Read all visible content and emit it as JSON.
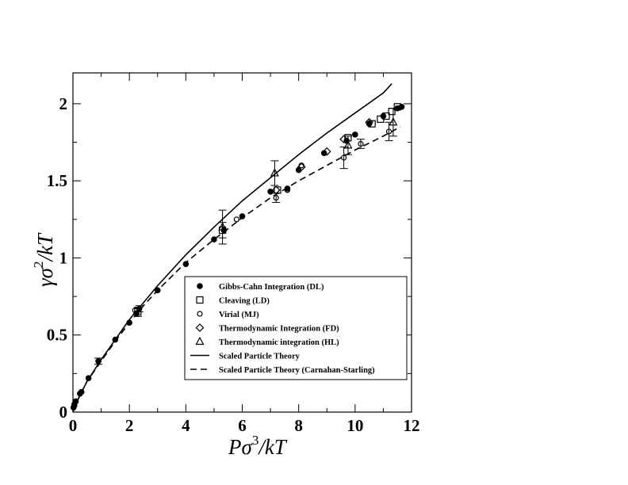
{
  "chart_data": {
    "type": "scatter",
    "xlabel": "Pσ³/kT",
    "ylabel": "γσ²/kT",
    "xlabel_parts": [
      "Pσ",
      "3",
      "/kT"
    ],
    "ylabel_parts": [
      "γσ",
      "2",
      "/kT"
    ],
    "xlim": [
      0,
      12
    ],
    "ylim": [
      0,
      2.2
    ],
    "x_ticks": [
      0,
      2,
      4,
      6,
      8,
      10,
      12
    ],
    "y_ticks": [
      0,
      0.5,
      1,
      1.5,
      2
    ],
    "x_tick_labels": [
      "0",
      "2",
      "4",
      "6",
      "8",
      "10",
      "12"
    ],
    "y_tick_labels": [
      "0",
      "0.5",
      "1",
      "1.5",
      "2"
    ],
    "grid": false,
    "legend_position": "bottom-right",
    "series": [
      {
        "name": "Gibbs-Cahn Integration (DL)",
        "marker": "filled-circle",
        "x": [
          0.02,
          0.05,
          0.1,
          0.25,
          0.3,
          0.55,
          0.9,
          1.5,
          2.0,
          2.25,
          2.35,
          3.0,
          4.0,
          5.0,
          5.35,
          6.0,
          7.0,
          7.6,
          8.0,
          8.9,
          9.7,
          10.0,
          10.5,
          11.0,
          11.5,
          11.65
        ],
        "y": [
          0.03,
          0.05,
          0.07,
          0.12,
          0.13,
          0.22,
          0.33,
          0.47,
          0.58,
          0.64,
          0.67,
          0.79,
          0.96,
          1.12,
          1.18,
          1.27,
          1.43,
          1.45,
          1.57,
          1.68,
          1.76,
          1.8,
          1.87,
          1.92,
          1.97,
          1.98
        ],
        "yerr": [
          0,
          0,
          0,
          0,
          0,
          0,
          0.02,
          0,
          0,
          0,
          0.02,
          0,
          0,
          0,
          0,
          0,
          0,
          0,
          0,
          0,
          0,
          0,
          0,
          0,
          0,
          0
        ]
      },
      {
        "name": "Cleaving (LD)",
        "marker": "open-square",
        "x": [
          2.3,
          5.3,
          7.25,
          9.75,
          10.6,
          10.9,
          11.1,
          11.3,
          11.5
        ],
        "y": [
          0.65,
          1.18,
          1.44,
          1.78,
          1.87,
          1.9,
          1.92,
          1.95,
          1.98
        ],
        "yerr": [
          0.03,
          0.05,
          0,
          0,
          0,
          0,
          0,
          0,
          0
        ]
      },
      {
        "name": "Virial (MJ)",
        "marker": "open-circle",
        "x": [
          0.05,
          0.25,
          0.9,
          2.2,
          5.8,
          7.2,
          7.6,
          8.1,
          9.6,
          10.2,
          11.2
        ],
        "y": [
          0.04,
          0.12,
          0.33,
          0.66,
          1.25,
          1.39,
          1.44,
          1.6,
          1.65,
          1.74,
          1.82
        ],
        "yerr": [
          0,
          0,
          0,
          0,
          0,
          0.03,
          0,
          0,
          0.07,
          0.03,
          0.06
        ]
      },
      {
        "name": "Thermodynamic Integration (FD)",
        "marker": "open-diamond",
        "x": [
          7.2,
          8.1,
          9.0,
          9.6,
          10.5
        ],
        "y": [
          1.44,
          1.59,
          1.69,
          1.77,
          1.88
        ],
        "yerr": [
          0,
          0,
          0,
          0,
          0
        ]
      },
      {
        "name": "Thermodynamic integration (HL)",
        "marker": "open-triangle",
        "x": [
          5.3,
          7.15,
          9.75,
          11.35
        ],
        "y": [
          1.2,
          1.55,
          1.73,
          1.88
        ],
        "yerr": [
          0.11,
          0.08,
          0.06,
          0.09
        ]
      },
      {
        "name": "Scaled Particle Theory",
        "line": "solid",
        "x": [
          0,
          0.05,
          0.2,
          0.5,
          1,
          1.5,
          2,
          2.5,
          3,
          4,
          5,
          6,
          7,
          8,
          9,
          10,
          11,
          11.3
        ],
        "y": [
          0,
          0.03,
          0.09,
          0.2,
          0.34,
          0.47,
          0.6,
          0.71,
          0.82,
          1.02,
          1.2,
          1.37,
          1.52,
          1.67,
          1.81,
          1.94,
          2.07,
          2.13
        ]
      },
      {
        "name": "Scaled Particle Theory (Carnahan-Starling)",
        "line": "dashed",
        "x": [
          0,
          0.05,
          0.2,
          0.5,
          1,
          1.5,
          2,
          2.5,
          3,
          4,
          5,
          6,
          7,
          8,
          9,
          10,
          11,
          11.6
        ],
        "y": [
          0,
          0.03,
          0.09,
          0.2,
          0.33,
          0.46,
          0.58,
          0.69,
          0.79,
          0.97,
          1.12,
          1.26,
          1.39,
          1.5,
          1.6,
          1.7,
          1.79,
          1.85
        ]
      }
    ]
  }
}
